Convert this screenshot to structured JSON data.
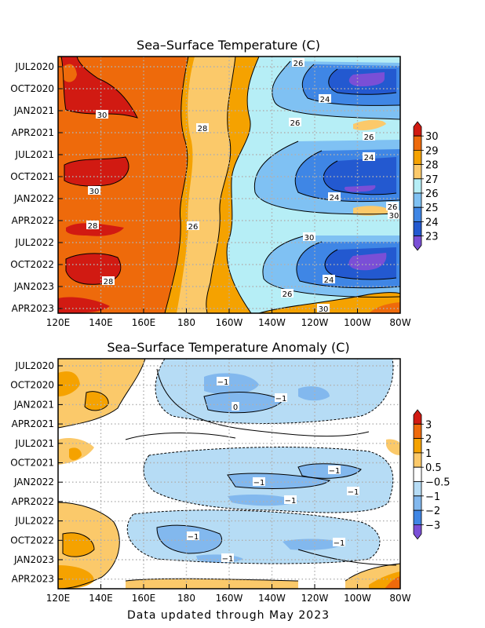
{
  "chart_data": [
    {
      "type": "heatmap",
      "title": "Sea–Surface Temperature (C)",
      "x_ticks": [
        "120E",
        "140E",
        "160E",
        "180",
        "160W",
        "140W",
        "120W",
        "100W",
        "80W"
      ],
      "y_ticks": [
        "JUL2020",
        "OCT2020",
        "JAN2021",
        "APR2021",
        "JUL2021",
        "OCT2021",
        "JAN2022",
        "APR2022",
        "JUL2022",
        "OCT2022",
        "JAN2023",
        "APR2023"
      ],
      "xlim": [
        "120E",
        "80W"
      ],
      "colorbar": {
        "labels": [
          "30",
          "29",
          "28",
          "27",
          "26",
          "25",
          "24",
          "23"
        ],
        "colors": [
          "#d11a12",
          "#ee6a0b",
          "#f5a200",
          "#fbc96a",
          "#b6eef6",
          "#7fc1f3",
          "#3f86e5",
          "#2359d0",
          "#7a4fd6"
        ]
      },
      "contour_labels": [
        "26",
        "24",
        "30",
        "26",
        "28",
        "26",
        "30",
        "24",
        "24",
        "26",
        "30",
        "28",
        "26",
        "30",
        "24",
        "26",
        "28",
        "30"
      ],
      "grid": true
    },
    {
      "type": "heatmap",
      "title": "Sea–Surface Temperature Anomaly (C)",
      "x_ticks": [
        "120E",
        "140E",
        "160E",
        "180",
        "160W",
        "140W",
        "120W",
        "100W",
        "80W"
      ],
      "y_ticks": [
        "JUL2020",
        "OCT2020",
        "JAN2021",
        "APR2021",
        "JUL2021",
        "OCT2021",
        "JAN2022",
        "APR2022",
        "JUL2022",
        "OCT2022",
        "JAN2023",
        "APR2023"
      ],
      "xlim": [
        "120E",
        "80W"
      ],
      "colorbar": {
        "labels": [
          "3",
          "2",
          "1",
          "0.5",
          "−0.5",
          "−1",
          "−2",
          "−3"
        ],
        "colors": [
          "#d11a12",
          "#ee6a0b",
          "#f5a200",
          "#fbc96a",
          "#ffffff",
          "#b6dcf5",
          "#82b8ee",
          "#3f86e5",
          "#7a4fd6"
        ]
      },
      "contour_labels": [
        "−1",
        "−1",
        "0",
        "−1",
        "−1",
        "−1",
        "−1",
        "−1",
        "−1",
        "−1"
      ],
      "grid": true
    }
  ],
  "footer": "Data updated through May 2023"
}
